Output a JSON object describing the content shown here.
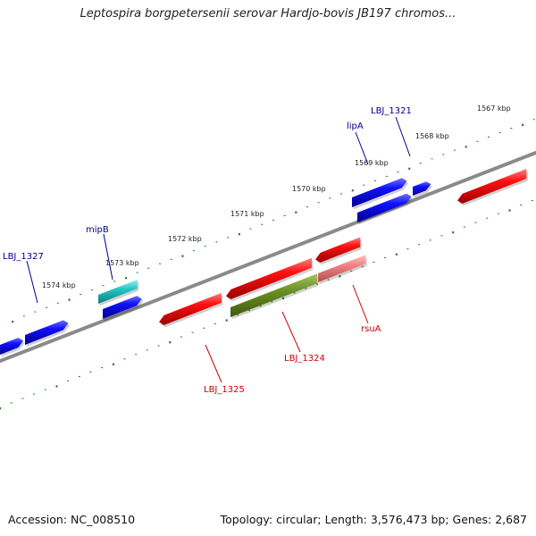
{
  "title": "Leptospira borgpetersenii serovar Hardjo-bovis JB197 chromos...",
  "footer": {
    "accession": "Accession: NC_008510",
    "summary": "Topology: circular; Length: 3,576,473 bp; Genes: 2,687"
  },
  "colors": {
    "forward_strand": "#0000ee",
    "reverse_strand": "#ee0000",
    "highlight_forward": "#22c4c4",
    "highlight_reverse": "#f08080",
    "highlight_olive": "#6b8e23",
    "backbone": "#888888",
    "ticks": "#1a7a1a",
    "label_forward": "#00008b",
    "label_reverse": "#cc0000"
  },
  "scale_ticks": [
    {
      "label": "1567 kbp"
    },
    {
      "label": "1568 kbp"
    },
    {
      "label": "1569 kbp"
    },
    {
      "label": "1570 kbp"
    },
    {
      "label": "1571 kbp"
    },
    {
      "label": "1572 kbp"
    },
    {
      "label": "1573 kbp"
    },
    {
      "label": "1574 kbp"
    }
  ],
  "gene_labels": [
    {
      "text": "LBJ_1321",
      "strand": "forward"
    },
    {
      "text": "lipA",
      "strand": "forward"
    },
    {
      "text": "mipB",
      "strand": "forward"
    },
    {
      "text": "LBJ_1327",
      "strand": "forward"
    },
    {
      "text": "rsuA",
      "strand": "reverse"
    },
    {
      "text": "LBJ_1324",
      "strand": "reverse"
    },
    {
      "text": "LBJ_1325",
      "strand": "reverse"
    }
  ]
}
